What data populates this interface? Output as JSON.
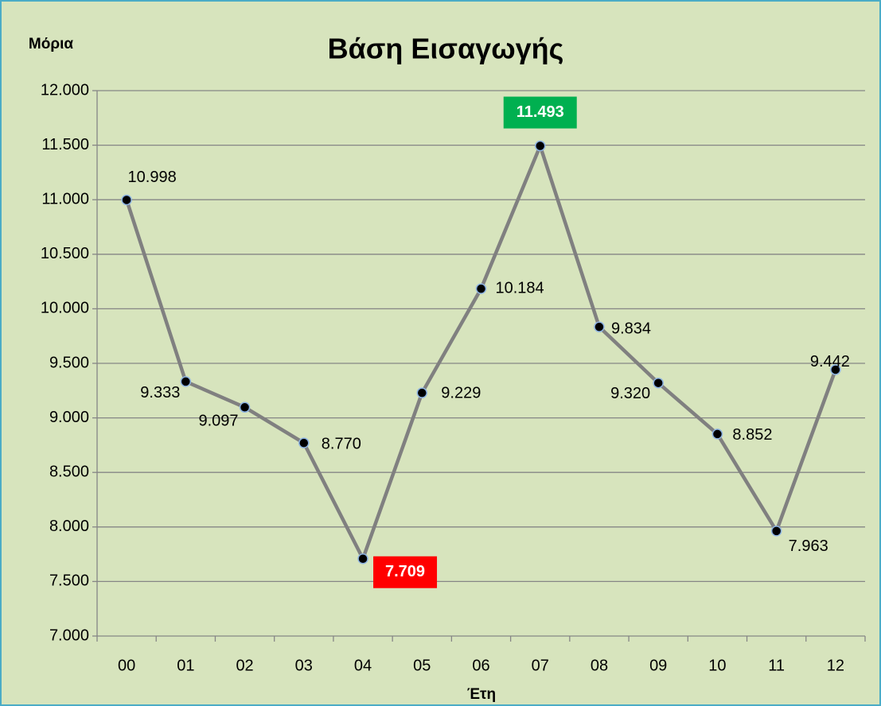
{
  "chart_data": {
    "type": "line",
    "title": "Βάση Εισαγωγής",
    "y_label": "Μόρια",
    "x_label": "Έτη",
    "categories": [
      "00",
      "01",
      "02",
      "03",
      "04",
      "05",
      "06",
      "07",
      "08",
      "09",
      "10",
      "11",
      "12"
    ],
    "values": [
      10998,
      9333,
      9097,
      8770,
      7709,
      9229,
      10184,
      11493,
      9834,
      9320,
      8852,
      7963,
      9442
    ],
    "value_labels": [
      "10.998",
      "9.333",
      "9.097",
      "8.770",
      "7.709",
      "9.229",
      "10.184",
      "11.493",
      "9.834",
      "9.320",
      "8.852",
      "7.963",
      "9.442"
    ],
    "color": "#808080",
    "marker_color": "#000000",
    "min_color": "#ff0000",
    "max_color": "#00b050",
    "ylim": [
      7000,
      12000
    ],
    "yticks": [
      {
        "value": 7000,
        "label": "7.000"
      },
      {
        "value": 7500,
        "label": "7.500"
      },
      {
        "value": 8000,
        "label": "8.000"
      },
      {
        "value": 8500,
        "label": "8.500"
      },
      {
        "value": 9000,
        "label": "9.000"
      },
      {
        "value": 9500,
        "label": "9.500"
      },
      {
        "value": 10000,
        "label": "10.000"
      },
      {
        "value": 10500,
        "label": "10.500"
      },
      {
        "value": 11000,
        "label": "11.000"
      },
      {
        "value": 11500,
        "label": "11.500"
      },
      {
        "value": 12000,
        "label": "12.000"
      }
    ],
    "grid": true
  }
}
